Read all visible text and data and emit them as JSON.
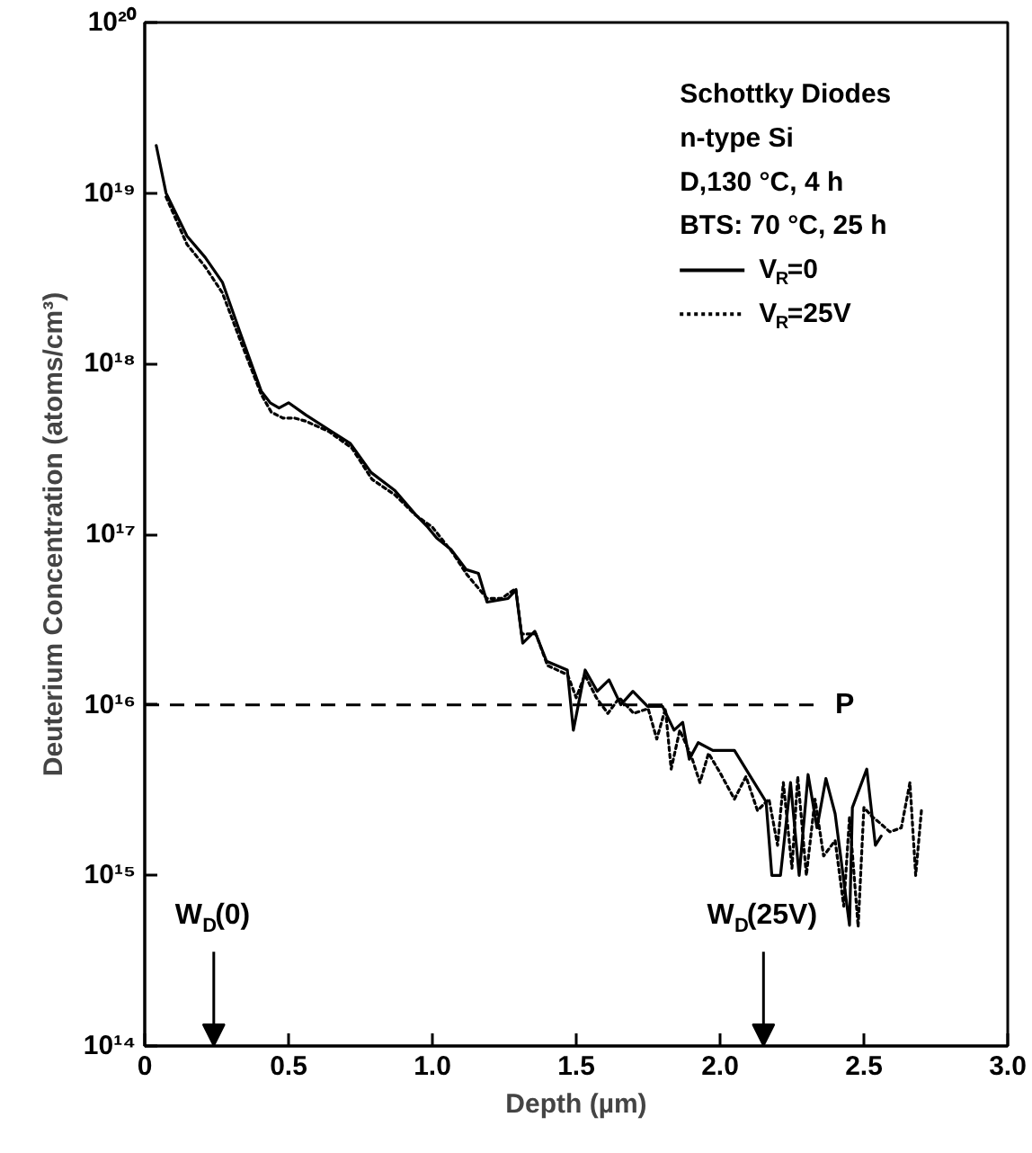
{
  "chart_data": {
    "type": "line",
    "xlabel": "Depth (µm)",
    "ylabel": "Deuterium Concentration (atoms/cm³)",
    "legend_title": "Schottky Diodes\nn-type Si\nD,130 °C, 4 h\nBTS: 70 °C, 25 h",
    "legend": "top right",
    "grid": false,
    "log": "y",
    "marker": "none",
    "xlim": [
      0,
      3.0
    ],
    "xticks": [
      0,
      0.5,
      {
        "value": 1.0,
        "label": "1.0"
      },
      1.5,
      {
        "value": 2.0,
        "label": "2.0"
      },
      2.5,
      {
        "value": 3.0,
        "label": "3.0"
      }
    ],
    "ylim": [
      100000000000000.0,
      1e+20
    ],
    "yticks": [
      {
        "value": 100000000000000.0,
        "label": "10¹⁴"
      },
      {
        "value": 1000000000000000.0,
        "label": "10¹⁵"
      },
      {
        "value": 1e+16,
        "label": "10¹⁶"
      },
      {
        "value": 1e+17,
        "label": "10¹⁷"
      },
      {
        "value": 1e+18,
        "label": "10¹⁸"
      },
      {
        "value": 1e+19,
        "label": "10¹⁹"
      },
      {
        "value": 1e+20,
        "label": "10²⁰"
      }
    ],
    "ref_lines": [
      {
        "axis": "y",
        "value": 1e+16,
        "label": "P",
        "line_style": "dashed"
      }
    ],
    "annotations": [
      "W$_{D}$(0)",
      "W$_{D}$(25V)"
    ],
    "series": [
      {
        "name": "V$_{R}$=0",
        "color": "#000000",
        "line_style": "solid",
        "x": [
          0.04,
          0.074,
          0.147,
          0.21,
          0.27,
          0.33,
          0.405,
          0.436,
          0.467,
          0.5,
          0.56,
          0.64,
          0.715,
          0.787,
          0.87,
          0.942,
          0.984,
          1.015,
          1.066,
          1.118,
          1.16,
          1.19,
          1.263,
          1.29,
          1.314,
          1.356,
          1.397,
          1.469,
          1.49,
          1.531,
          1.573,
          1.614,
          1.655,
          1.697,
          1.748,
          1.8,
          1.84,
          1.87,
          1.893,
          1.924,
          1.975,
          2.05,
          2.11,
          2.16,
          2.18,
          2.21,
          2.245,
          2.275,
          2.306,
          2.337,
          2.368,
          2.4,
          2.45,
          2.46,
          2.51,
          2.54,
          2.56
        ],
        "values": [
          1.9e+19,
          1e+19,
          5.6e+18,
          4.2e+18,
          3e+18,
          1.55e+18,
          6.9e+17,
          5.9e+17,
          5.5e+17,
          5.9e+17,
          5e+17,
          4.1e+17,
          3.4e+17,
          2.3e+17,
          1.8e+17,
          1.3e+17,
          1.1e+17,
          9.5e+16,
          8.1e+16,
          6.2e+16,
          5.9e+16,
          4e+16,
          4.2e+16,
          4.7e+16,
          2.3e+16,
          2.7e+16,
          1.8e+16,
          1.6e+16,
          7100000000000000.0,
          1.6e+16,
          1.2e+16,
          1.4e+16,
          1e+16,
          1.2e+16,
          9800000000000000.0,
          9800000000000000.0,
          7100000000000000.0,
          7900000000000000.0,
          4800000000000000.0,
          6000000000000000.0,
          5400000000000000.0,
          5400000000000000.0,
          3700000000000000.0,
          2700000000000000.0,
          1000000000000000.0,
          1000000000000000.0,
          3500000000000000.0,
          1000000000000000.0,
          3900000000000000.0,
          1900000000000000.0,
          3700000000000000.0,
          2300000000000000.0,
          510000000000000.0,
          2500000000000000.0,
          4200000000000000.0,
          1500000000000000.0,
          1700000000000000.0
        ]
      },
      {
        "name": "V$_{R}$=25V",
        "color": "#000000",
        "line_style": "dotted",
        "x": [
          0.074,
          0.147,
          0.21,
          0.27,
          0.33,
          0.405,
          0.44,
          0.48,
          0.52,
          0.56,
          0.64,
          0.72,
          0.79,
          0.87,
          0.94,
          1.0,
          1.07,
          1.12,
          1.19,
          1.24,
          1.29,
          1.31,
          1.36,
          1.4,
          1.47,
          1.5,
          1.53,
          1.57,
          1.61,
          1.65,
          1.7,
          1.75,
          1.78,
          1.81,
          1.83,
          1.86,
          1.9,
          1.93,
          1.96,
          2.0,
          2.05,
          2.09,
          2.13,
          2.17,
          2.2,
          2.22,
          2.25,
          2.27,
          2.3,
          2.33,
          2.36,
          2.4,
          2.43,
          2.45,
          2.48,
          2.5,
          2.53,
          2.56,
          2.59,
          2.63,
          2.66,
          2.68,
          2.7
        ],
        "values": [
          9.5e+18,
          5e+18,
          3.7e+18,
          2.6e+18,
          1.4e+18,
          6.6e+17,
          5.2e+17,
          4.8e+17,
          4.8e+17,
          4.6e+17,
          4e+17,
          3.2e+17,
          2.1e+17,
          1.7e+17,
          1.3e+17,
          1.1e+17,
          7.8e+16,
          5.8e+16,
          4.2e+16,
          4.2e+16,
          4.8e+16,
          2.6e+16,
          2.6e+16,
          1.7e+16,
          1.5e+16,
          1.1e+16,
          1.5e+16,
          1.1e+16,
          8900000000000000.0,
          1.1e+16,
          8900000000000000.0,
          9500000000000000.0,
          6300000000000000.0,
          9500000000000000.0,
          4200000000000000.0,
          7100000000000000.0,
          5000000000000000.0,
          3500000000000000.0,
          5200000000000000.0,
          4000000000000000.0,
          2800000000000000.0,
          3800000000000000.0,
          2400000000000000.0,
          2800000000000000.0,
          1500000000000000.0,
          3500000000000000.0,
          1100000000000000.0,
          3800000000000000.0,
          1000000000000000.0,
          2800000000000000.0,
          1300000000000000.0,
          1600000000000000.0,
          660000000000000.0,
          2200000000000000.0,
          500000000000000.0,
          2500000000000000.0,
          2200000000000000.0,
          2000000000000000.0,
          1800000000000000.0,
          1900000000000000.0,
          3500000000000000.0,
          1000000000000000.0,
          2400000000000000.0
        ]
      }
    ]
  }
}
